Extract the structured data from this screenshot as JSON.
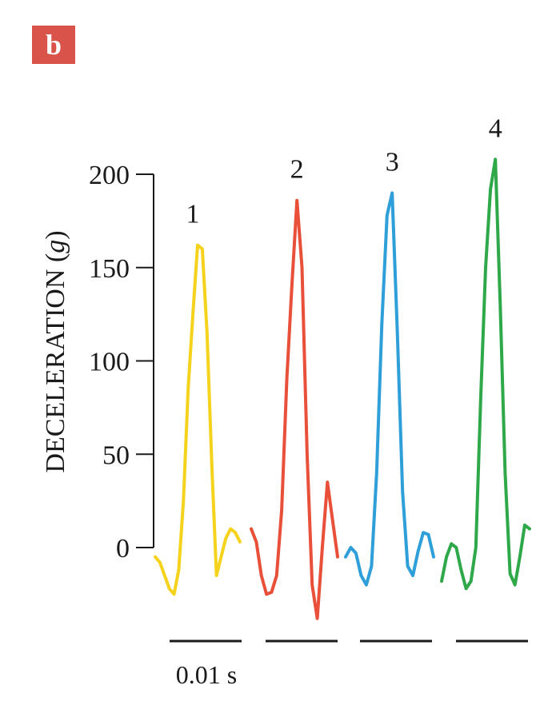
{
  "panel": {
    "label": "b",
    "badge_color": "#d9534a"
  },
  "chart_data": {
    "type": "line",
    "ylabel_main": "DECELERATION (",
    "ylabel_italic": "g",
    "ylabel_close": ")",
    "ylim": [
      0,
      200
    ],
    "yticks": [
      "0",
      "50",
      "100",
      "150",
      "200"
    ],
    "scale_bar_label": "0.01 s",
    "grid": false,
    "series": [
      {
        "name": "1",
        "color": "#f5d31c",
        "values": [
          -5,
          -8,
          -15,
          -22,
          -25,
          -12,
          25,
          85,
          125,
          162,
          160,
          115,
          45,
          -15,
          -5,
          5,
          10,
          8,
          3
        ]
      },
      {
        "name": "2",
        "color": "#e8503a",
        "values": [
          10,
          3,
          -15,
          -25,
          -24,
          -15,
          20,
          90,
          140,
          186,
          150,
          50,
          -20,
          -38,
          0,
          35,
          15,
          -5
        ]
      },
      {
        "name": "3",
        "color": "#2e9fd9",
        "values": [
          -5,
          0,
          -3,
          -15,
          -20,
          -10,
          40,
          120,
          178,
          190,
          115,
          30,
          -10,
          -15,
          -2,
          8,
          7,
          -5
        ]
      },
      {
        "name": "4",
        "color": "#2fa84a",
        "values": [
          -18,
          -5,
          2,
          0,
          -12,
          -22,
          -18,
          0,
          80,
          150,
          192,
          208,
          130,
          40,
          -14,
          -20,
          -5,
          12,
          10
        ]
      }
    ]
  }
}
